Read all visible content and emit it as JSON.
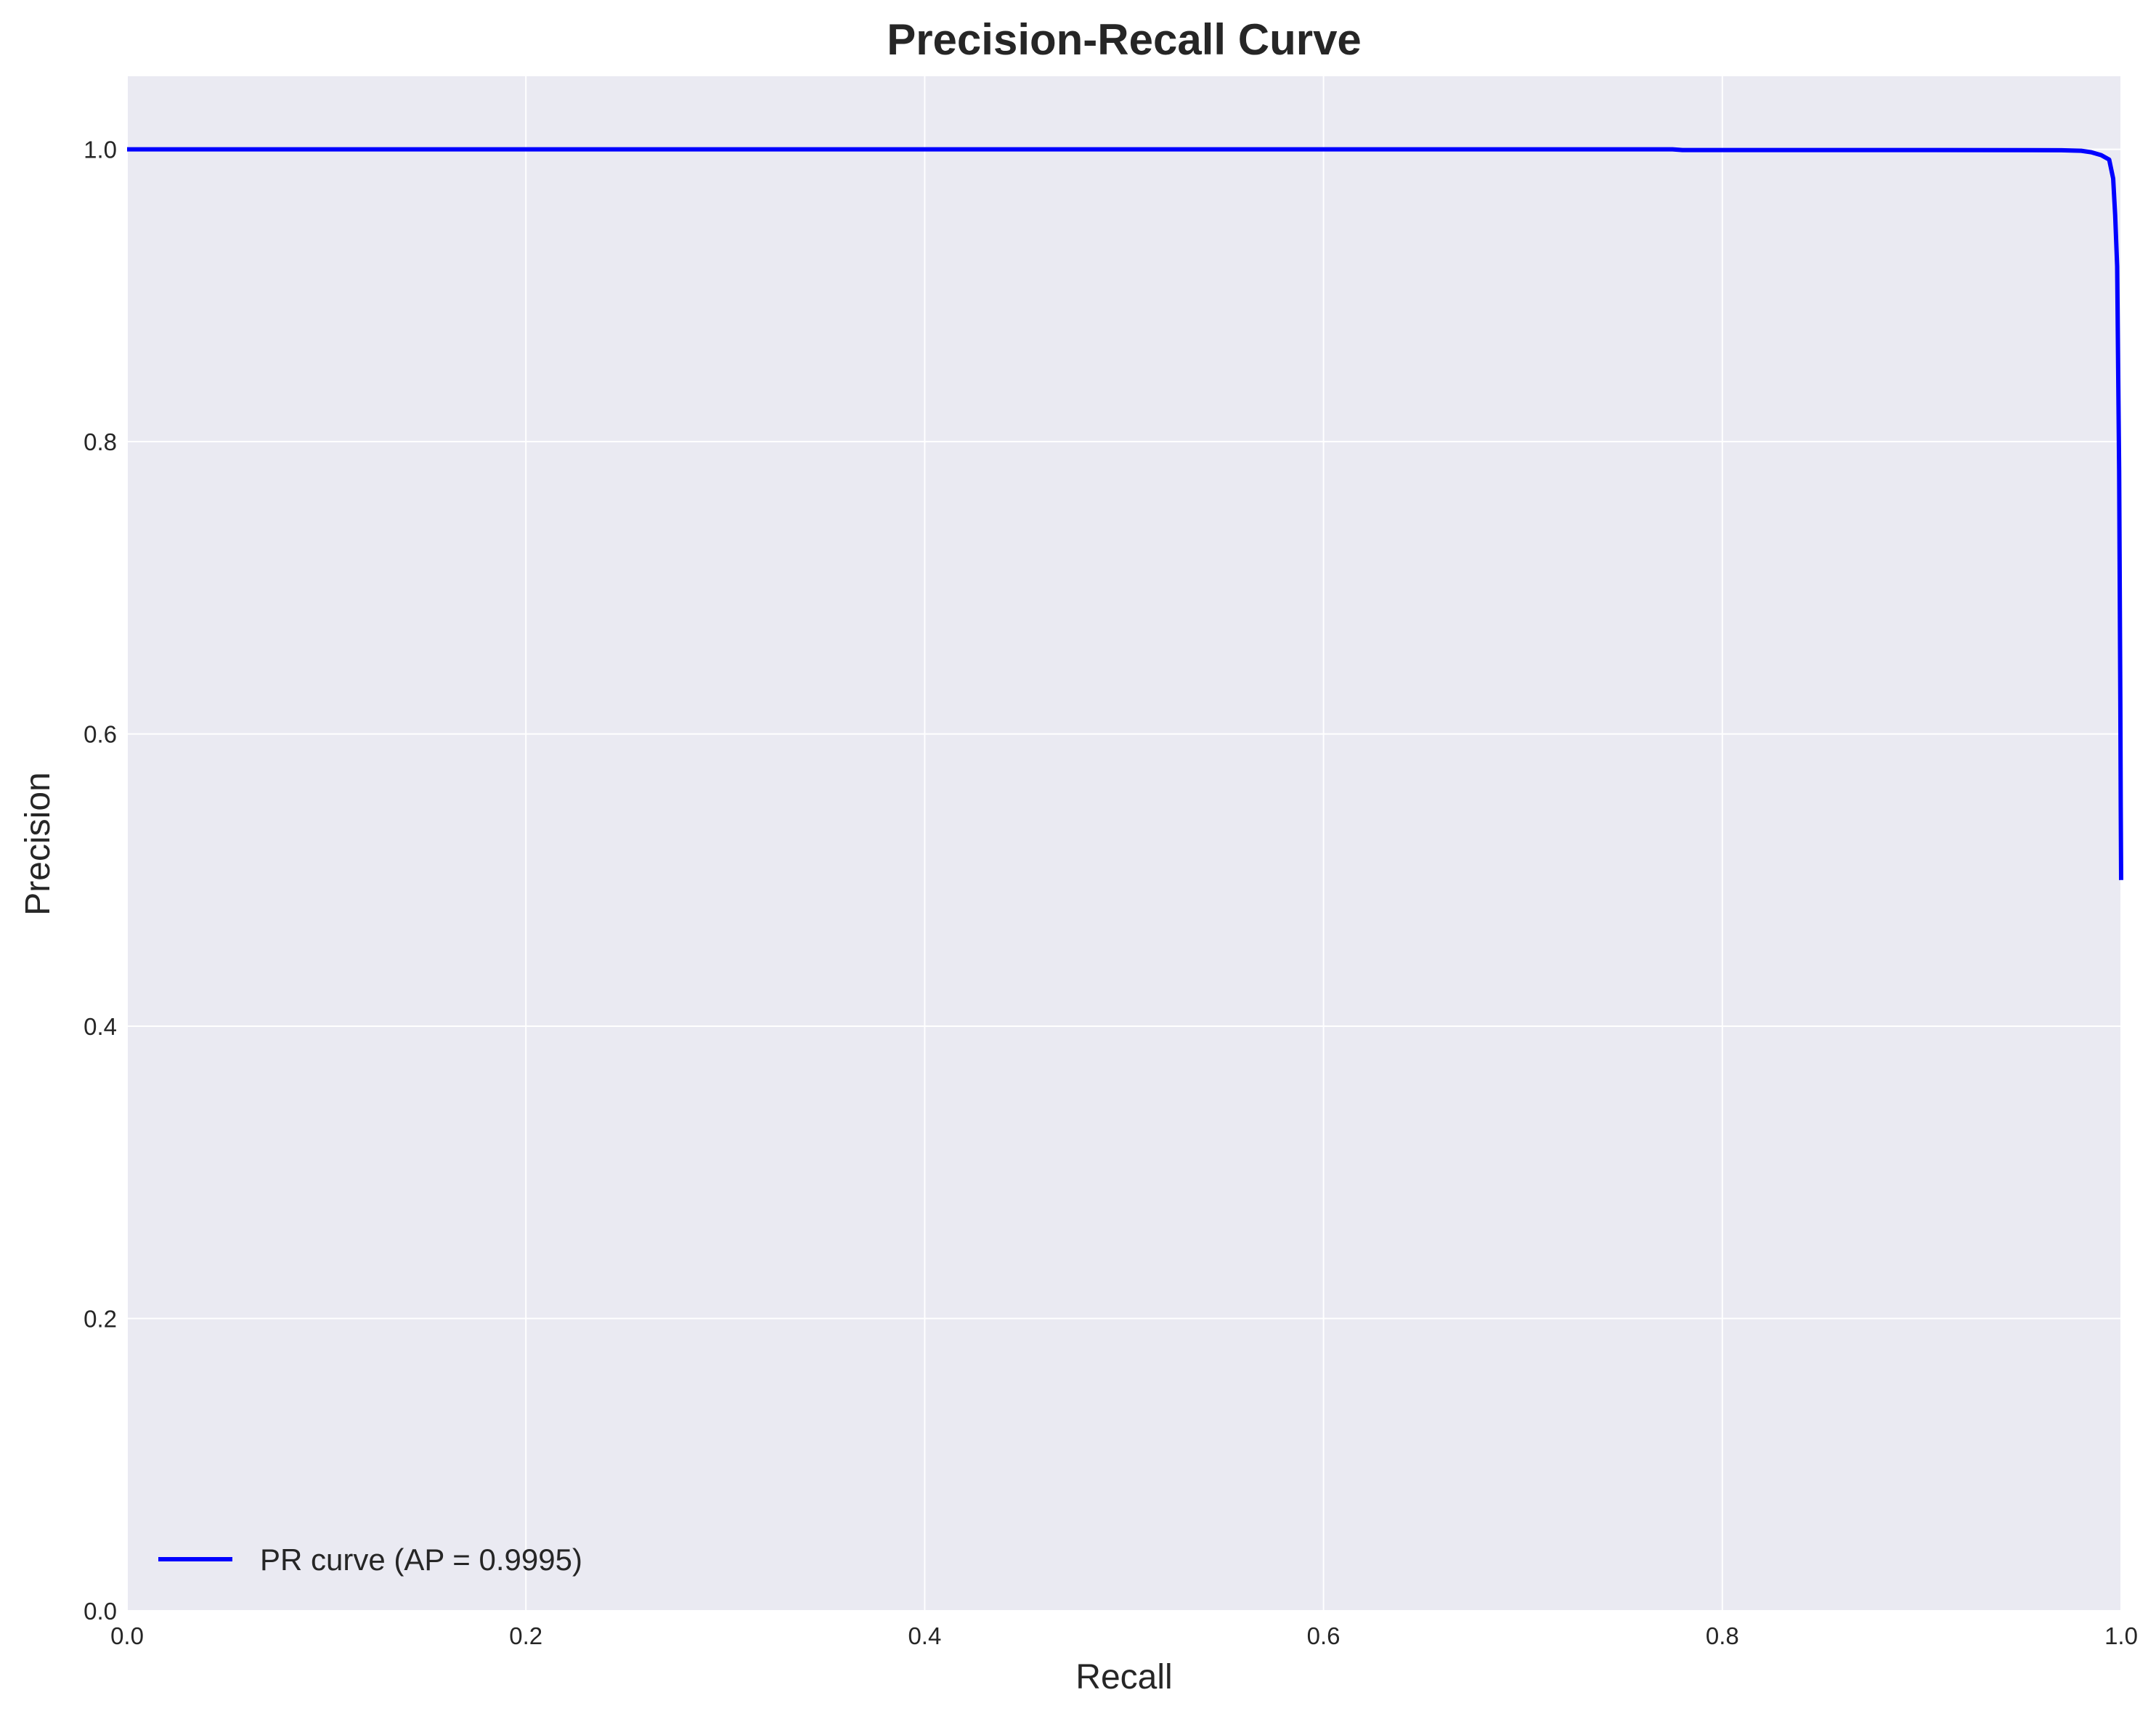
{
  "chart_data": {
    "type": "line",
    "title": "Precision-Recall Curve",
    "xlabel": "Recall",
    "ylabel": "Precision",
    "xlim": [
      0.0,
      1.0
    ],
    "ylim": [
      0.0,
      1.05
    ],
    "xticks": [
      0.0,
      0.2,
      0.4,
      0.6,
      0.8,
      1.0
    ],
    "xtick_labels": [
      "0.0",
      "0.2",
      "0.4",
      "0.6",
      "0.8",
      "1.0"
    ],
    "yticks": [
      0.0,
      0.2,
      0.4,
      0.6,
      0.8,
      1.0
    ],
    "ytick_labels": [
      "0.0",
      "0.2",
      "0.4",
      "0.6",
      "0.8",
      "1.0"
    ],
    "grid": true,
    "legend_position": "lower-left",
    "series": [
      {
        "name": "PR curve (AP = 0.9995)",
        "color": "#0000ff",
        "x": [
          0.0,
          0.2,
          0.4,
          0.6,
          0.775,
          0.78,
          0.9,
          0.97,
          0.98,
          0.985,
          0.99,
          0.994,
          0.996,
          0.997,
          0.998,
          0.9985,
          0.999,
          0.9993,
          0.9996,
          0.9998,
          1.0
        ],
        "y": [
          1.0,
          1.0,
          1.0,
          1.0,
          1.0,
          0.9995,
          0.9995,
          0.9994,
          0.999,
          0.998,
          0.996,
          0.993,
          0.98,
          0.955,
          0.92,
          0.85,
          0.78,
          0.7,
          0.62,
          0.55,
          0.5
        ]
      }
    ]
  },
  "colors": {
    "plot_background": "#eaeaf2",
    "grid": "#ffffff",
    "line": "#0000ff",
    "text": "#262626"
  }
}
